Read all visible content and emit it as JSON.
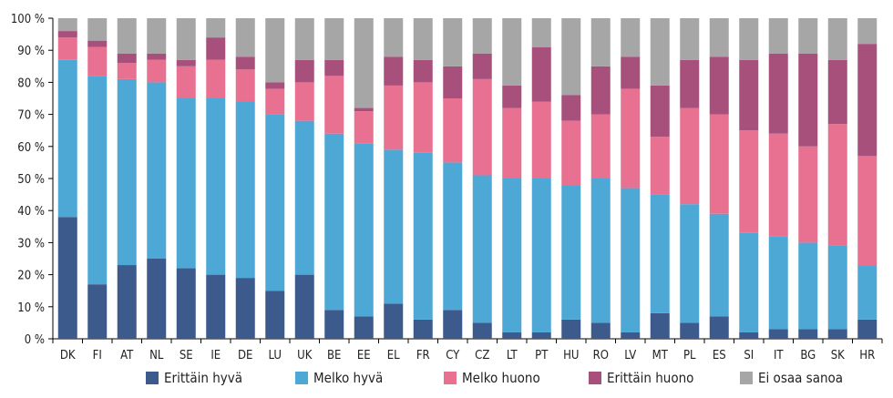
{
  "chart_data": {
    "type": "bar",
    "stacked": true,
    "title": "",
    "xlabel": "",
    "ylabel": "",
    "ylim": [
      0,
      100
    ],
    "yticks": [
      "0 %",
      "10 %",
      "20 %",
      "30 %",
      "40 %",
      "50 %",
      "60 %",
      "70 %",
      "80 %",
      "90 %",
      "100 %"
    ],
    "grid": false,
    "legend_position": "bottom",
    "categories": [
      "DK",
      "FI",
      "AT",
      "NL",
      "SE",
      "IE",
      "DE",
      "LU",
      "UK",
      "BE",
      "EE",
      "EL",
      "FR",
      "CY",
      "CZ",
      "LT",
      "PT",
      "HU",
      "RO",
      "LV",
      "MT",
      "PL",
      "ES",
      "SI",
      "IT",
      "BG",
      "SK",
      "HR"
    ],
    "series": [
      {
        "name": "Erittäin hyvä",
        "color": "#3c5a8c",
        "values": [
          38,
          17,
          23,
          25,
          22,
          20,
          19,
          15,
          20,
          9,
          7,
          11,
          6,
          9,
          5,
          2,
          2,
          6,
          5,
          2,
          8,
          5,
          7,
          2,
          3,
          3,
          3,
          6
        ]
      },
      {
        "name": "Melko hyvä",
        "color": "#4ea8d6",
        "values": [
          49,
          65,
          58,
          55,
          53,
          55,
          55,
          55,
          48,
          55,
          54,
          48,
          52,
          46,
          46,
          48,
          48,
          42,
          45,
          45,
          37,
          37,
          32,
          31,
          29,
          27,
          26,
          17
        ]
      },
      {
        "name": "Melko huono",
        "color": "#e87090",
        "values": [
          7,
          9,
          5,
          7,
          10,
          12,
          10,
          8,
          12,
          18,
          10,
          20,
          22,
          20,
          30,
          22,
          24,
          20,
          20,
          31,
          18,
          30,
          31,
          32,
          32,
          30,
          38,
          34
        ]
      },
      {
        "name": "Erittäin huono",
        "color": "#a8507c",
        "values": [
          2,
          2,
          3,
          2,
          2,
          7,
          4,
          2,
          7,
          5,
          1,
          9,
          7,
          10,
          8,
          7,
          17,
          8,
          15,
          10,
          16,
          15,
          18,
          22,
          25,
          29,
          20,
          35
        ]
      },
      {
        "name": "Ei osaa sanoa",
        "color": "#a6a6a6",
        "values": [
          4,
          7,
          11,
          11,
          13,
          6,
          12,
          20,
          13,
          13,
          28,
          12,
          13,
          15,
          11,
          21,
          9,
          24,
          15,
          12,
          21,
          13,
          12,
          13,
          11,
          11,
          13,
          8
        ]
      }
    ]
  },
  "legend": [
    "Erittäin hyvä",
    "Melko hyvä",
    "Melko huono",
    "Erittäin huono",
    "Ei osaa sanoa"
  ]
}
